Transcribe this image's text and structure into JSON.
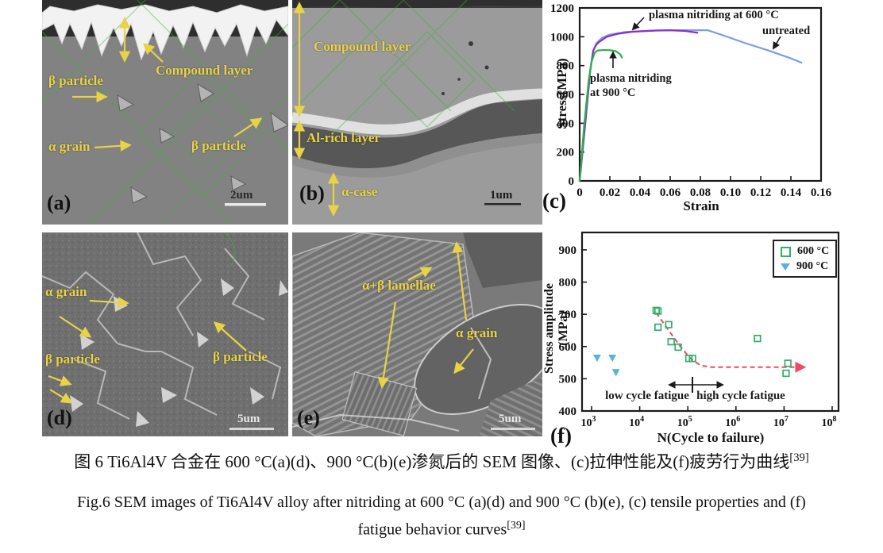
{
  "figure": {
    "panels": {
      "a": {
        "label": "(a)",
        "scale": "2um",
        "ann_beta_top": "β particle",
        "ann_compound": "Compound layer",
        "ann_alpha": "α grain",
        "ann_beta_right": "β particle"
      },
      "b": {
        "label": "(b)",
        "scale": "1um",
        "ann_compound": "Compound layer",
        "ann_al_rich": "Al-rich layer",
        "ann_alpha_case": "α-case"
      },
      "d": {
        "label": "(d)",
        "scale": "5um",
        "ann_alpha": "α grain",
        "ann_beta_left": "β particle",
        "ann_beta_right": "β particle"
      },
      "e": {
        "label": "(e)",
        "scale": "5um",
        "ann_lamellae": "α+β lamellae",
        "ann_alpha": "α grain"
      },
      "c": {
        "label": "(c)"
      },
      "f": {
        "label": "(f)"
      }
    }
  },
  "chart_data": [
    {
      "id": "c",
      "type": "line",
      "xlabel": "Strain",
      "ylabel": "Stress(MPa)",
      "xlim": [
        0,
        0.16
      ],
      "ylim": [
        0,
        1200
      ],
      "xticks": [
        "0",
        "0.02",
        "0.04",
        "0.06",
        "0.08",
        "0.10",
        "0.12",
        "0.14",
        "0.16"
      ],
      "yticks": [
        0,
        200,
        400,
        600,
        800,
        1000,
        1200
      ],
      "grid": false,
      "series": [
        {
          "name": "untreated",
          "color": "#7b9ce8",
          "points": [
            [
              0,
              0
            ],
            [
              0.004,
              430
            ],
            [
              0.007,
              760
            ],
            [
              0.009,
              900
            ],
            [
              0.011,
              955
            ],
            [
              0.015,
              995
            ],
            [
              0.02,
              1015
            ],
            [
              0.03,
              1033
            ],
            [
              0.05,
              1043
            ],
            [
              0.07,
              1046
            ],
            [
              0.085,
              1045
            ],
            [
              0.095,
              1010
            ],
            [
              0.11,
              955
            ],
            [
              0.125,
              905
            ],
            [
              0.14,
              850
            ],
            [
              0.147,
              820
            ]
          ]
        },
        {
          "name": "plasma nitriding at 600 °C",
          "color": "#8a2fc9",
          "points": [
            [
              0,
              0
            ],
            [
              0.004,
              430
            ],
            [
              0.007,
              770
            ],
            [
              0.009,
              905
            ],
            [
              0.011,
              945
            ],
            [
              0.013,
              965
            ],
            [
              0.018,
              1000
            ],
            [
              0.025,
              1020
            ],
            [
              0.035,
              1035
            ],
            [
              0.05,
              1043
            ],
            [
              0.06,
              1045
            ],
            [
              0.07,
              1040
            ],
            [
              0.078,
              1028
            ]
          ]
        },
        {
          "name": "plasma nitriding at 900 °C",
          "color": "#2eb049",
          "points": [
            [
              0,
              0
            ],
            [
              0.003,
              390
            ],
            [
              0.006,
              700
            ],
            [
              0.008,
              830
            ],
            [
              0.01,
              890
            ],
            [
              0.012,
              905
            ],
            [
              0.016,
              908
            ],
            [
              0.02,
              907
            ],
            [
              0.024,
              900
            ],
            [
              0.027,
              878
            ],
            [
              0.028,
              855
            ]
          ]
        }
      ],
      "labels": {
        "l600": "plasma nitriding at 600 °C",
        "untreated": "untreated",
        "l900a": "plasma nitriding",
        "l900b": "at 900 °C"
      }
    },
    {
      "id": "f",
      "type": "scatter",
      "xlabel": "N(Cycle to failure)",
      "ylabel": "Stress amplitude (MPa)",
      "xscale": "log",
      "xlim": [
        1000,
        100000000
      ],
      "ylim": [
        400,
        954
      ],
      "xtick_exponents": [
        3,
        4,
        5,
        6,
        7,
        8
      ],
      "yticks": [
        400,
        500,
        600,
        700,
        800,
        900
      ],
      "grid": false,
      "legend_position": "top-right",
      "legend": [
        {
          "label": "600 °C",
          "marker": "open-square",
          "color": "#2eb06a"
        },
        {
          "label": "900 °C",
          "marker": "filled-triangle-down",
          "color": "#5bb0e0"
        }
      ],
      "series": [
        {
          "name": "600 °C",
          "marker": "open-square",
          "color": "#2eb06a",
          "points": [
            [
              22000,
              712
            ],
            [
              24000,
              710
            ],
            [
              24000,
              660
            ],
            [
              40000,
              668
            ],
            [
              45000,
              615
            ],
            [
              63000,
              598
            ],
            [
              105000,
              563
            ],
            [
              125000,
              563
            ],
            [
              2800000,
              625
            ],
            [
              12000000,
              548
            ],
            [
              11000000,
              517
            ]
          ]
        },
        {
          "name": "900 °C",
          "marker": "filled-triangle-down",
          "color": "#5bb0e0",
          "points": [
            [
              1300,
              565
            ],
            [
              2700,
              565
            ],
            [
              3200,
              520
            ]
          ]
        }
      ],
      "trend_line": {
        "color": "#f04868",
        "style": "dashed",
        "arrow_end": true,
        "points": [
          [
            22000,
            705
          ],
          [
            40000,
            650
          ],
          [
            70000,
            600
          ],
          [
            110000,
            565
          ],
          [
            180000,
            542
          ],
          [
            300000,
            536
          ],
          [
            26000000,
            536
          ]
        ]
      },
      "labels": {
        "ann_low": "low cycle fatigue",
        "ann_high": "high cycle fatigue"
      }
    }
  ],
  "caption": {
    "zh": "图 6 Ti6Al4V 合金在 600 °C(a)(d)、900 °C(b)(e)渗氮后的 SEM 图像、(c)拉伸性能及(f)疲劳行为曲线",
    "zh_ref": "[39]",
    "en_line1": "Fig.6 SEM images of Ti6Al4V alloy after nitriding at 600 °C (a)(d) and 900 °C (b)(e), (c) tensile properties and (f)",
    "en_line2": "fatigue behavior curves",
    "en_ref": "[39]"
  }
}
